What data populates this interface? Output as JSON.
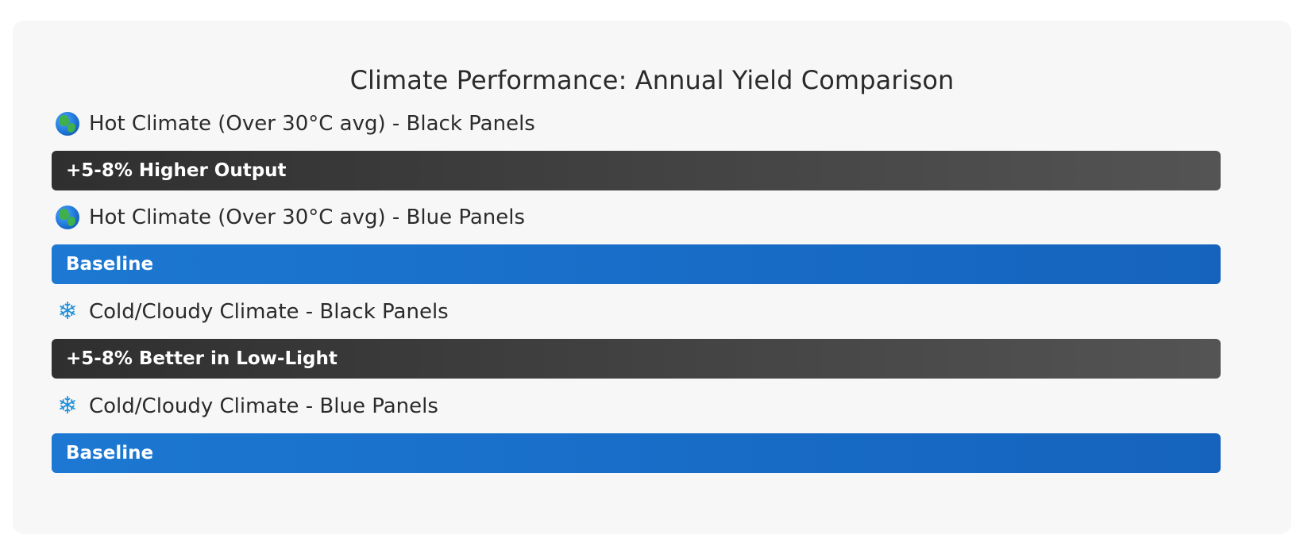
{
  "chart_data": {
    "type": "bar",
    "title": "Climate Performance: Annual Yield Comparison",
    "orientation": "horizontal",
    "categories": [
      "Hot Climate (Over 30°C avg) - Black Panels",
      "Hot Climate (Over 30°C avg) - Blue Panels",
      "Cold/Cloudy Climate - Black Panels",
      "Cold/Cloudy Climate - Blue Panels"
    ],
    "bars": [
      {
        "label": "Hot Climate (Over 30°C avg) - Black Panels",
        "icon": "globe-icon",
        "bar_text": "+5-8% Higher Output",
        "value": 1.0,
        "color": "black",
        "gradient": [
          "#2f2f2f",
          "#545454"
        ]
      },
      {
        "label": "Hot Climate (Over 30°C avg) - Blue Panels",
        "icon": "globe-icon",
        "bar_text": "Baseline",
        "value": 1.0,
        "color": "blue",
        "gradient": [
          "#1c78d2",
          "#1563bd"
        ]
      },
      {
        "label": "Cold/Cloudy Climate - Black Panels",
        "icon": "snowflake-icon",
        "bar_text": "+5-8% Better in Low-Light",
        "value": 1.0,
        "color": "black",
        "gradient": [
          "#2f2f2f",
          "#545454"
        ]
      },
      {
        "label": "Cold/Cloudy Climate - Blue Panels",
        "icon": "snowflake-icon",
        "bar_text": "Baseline",
        "value": 1.0,
        "color": "blue",
        "gradient": [
          "#1c78d2",
          "#1563bd"
        ]
      }
    ],
    "grid": false,
    "legend": "none"
  },
  "colors": {
    "card_background": "#f7f7f7",
    "text": "#2b2b2b",
    "bar_text": "#ffffff",
    "snowflake": "#1f8fd8"
  }
}
